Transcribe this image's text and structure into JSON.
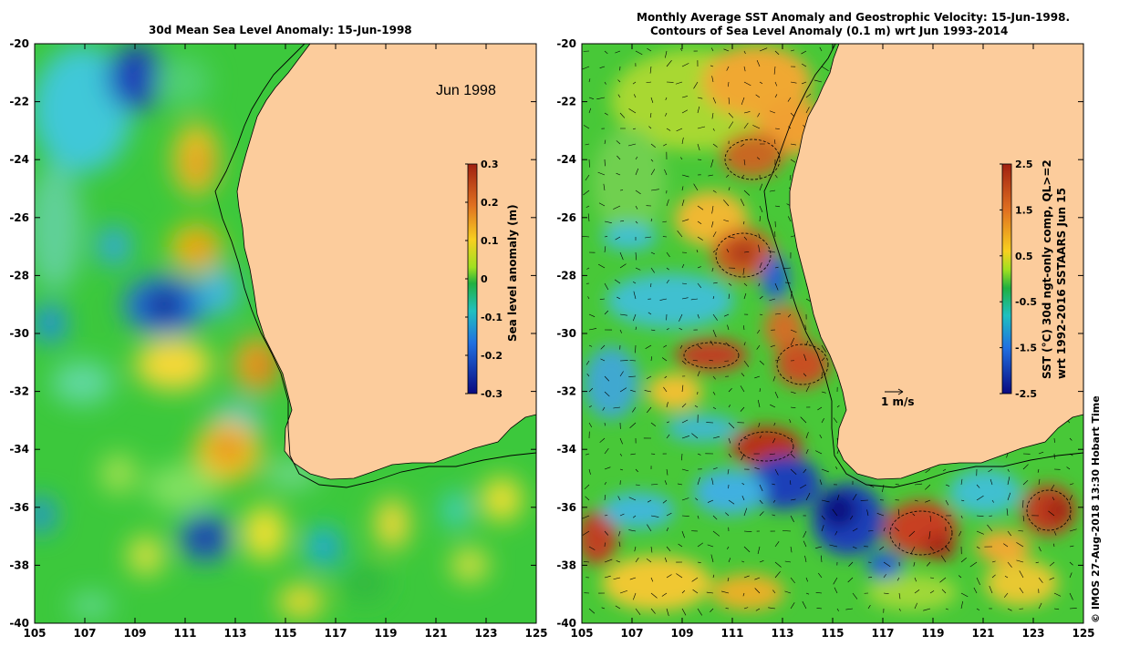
{
  "left_panel": {
    "title": "30d Mean Sea Level Anomaly: 15-Jun-1998",
    "inset_label": "Jun 1998",
    "colorbar": {
      "label": "Sea level anomaly (m)",
      "ticks": [
        "0.3",
        "0.2",
        "0.1",
        "0",
        "-0.1",
        "-0.2",
        "-0.3"
      ]
    }
  },
  "right_panel": {
    "title_line1": "Monthly Average SST Anomaly  and Geostrophic Velocity: 15-Jun-1998.",
    "title_line2": "Contours of Sea Level Anomaly (0.1 m) wrt Jun 1993-2014",
    "scale_label": "1 m/s",
    "colorbar": {
      "label_line1": "SST (°C) 30d ngt-only comp, QL>=2",
      "label_line2": "wrt 1992-2016 SSTAARS Jun 15",
      "ticks": [
        "2.5",
        "1.5",
        "0.5",
        "-0.5",
        "-1.5",
        "-2.5"
      ]
    }
  },
  "axes": {
    "x_ticks": [
      "105",
      "107",
      "109",
      "111",
      "113",
      "115",
      "117",
      "119",
      "121",
      "123",
      "125"
    ],
    "y_ticks": [
      "-20",
      "-22",
      "-24",
      "-26",
      "-28",
      "-30",
      "-32",
      "-34",
      "-36",
      "-38",
      "-40"
    ],
    "lon_range": [
      105,
      125
    ],
    "lat_range": [
      -20,
      -40
    ]
  },
  "credit": "© IMOS 27-Aug-2018 13:30 Hobart Time",
  "colors": {
    "land": "#fccc9c",
    "ocean_green": "#3cc83c",
    "warm": "#f0a030",
    "cold": "#2050d0"
  }
}
